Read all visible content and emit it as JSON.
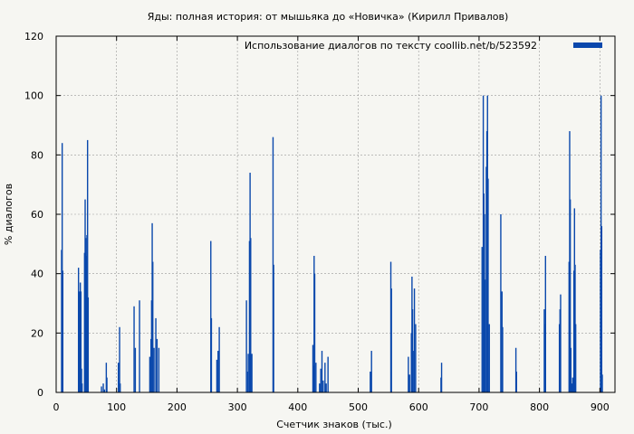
{
  "chart_data": {
    "type": "bar",
    "title": "Яды: полная история: от мышьяка до «Новичка» (Кирилл Привалов)",
    "xlabel": "Счетчик знаков (тыс.)",
    "ylabel": "% диалогов",
    "xlim": [
      0,
      925
    ],
    "ylim": [
      0,
      120
    ],
    "x_ticks": [
      0,
      100,
      200,
      300,
      400,
      500,
      600,
      700,
      800,
      900
    ],
    "y_ticks": [
      0,
      20,
      40,
      60,
      80,
      100,
      120
    ],
    "grid": true,
    "legend_position": "top-right",
    "series": [
      {
        "name": "Использование диалогов по тексту  coollib.net/b/523592",
        "color": "#0a48ac",
        "points": [
          [
            9,
            48
          ],
          [
            10,
            84
          ],
          [
            11,
            41
          ],
          [
            37,
            42
          ],
          [
            38,
            34
          ],
          [
            39,
            19
          ],
          [
            40,
            37
          ],
          [
            41,
            34
          ],
          [
            42,
            8
          ],
          [
            43,
            3
          ],
          [
            47,
            47
          ],
          [
            48,
            65
          ],
          [
            49,
            52
          ],
          [
            50,
            46
          ],
          [
            51,
            53
          ],
          [
            52,
            85
          ],
          [
            53,
            32
          ],
          [
            75,
            2
          ],
          [
            78,
            3
          ],
          [
            80,
            1
          ],
          [
            83,
            10
          ],
          [
            84,
            5
          ],
          [
            103,
            10
          ],
          [
            105,
            22
          ],
          [
            106,
            3
          ],
          [
            129,
            29
          ],
          [
            131,
            15
          ],
          [
            138,
            31
          ],
          [
            155,
            12
          ],
          [
            157,
            18
          ],
          [
            158,
            31
          ],
          [
            159,
            57
          ],
          [
            160,
            44
          ],
          [
            162,
            15
          ],
          [
            165,
            25
          ],
          [
            167,
            18
          ],
          [
            170,
            15
          ],
          [
            256,
            51
          ],
          [
            257,
            25
          ],
          [
            266,
            11
          ],
          [
            268,
            14
          ],
          [
            270,
            22
          ],
          [
            315,
            31
          ],
          [
            317,
            7
          ],
          [
            318,
            13
          ],
          [
            320,
            51
          ],
          [
            321,
            74
          ],
          [
            322,
            52
          ],
          [
            324,
            13
          ],
          [
            359,
            86
          ],
          [
            360,
            43
          ],
          [
            425,
            16
          ],
          [
            426,
            9
          ],
          [
            427,
            46
          ],
          [
            428,
            40
          ],
          [
            430,
            10
          ],
          [
            436,
            3
          ],
          [
            438,
            8
          ],
          [
            440,
            14
          ],
          [
            442,
            4
          ],
          [
            445,
            10
          ],
          [
            447,
            3
          ],
          [
            450,
            12
          ],
          [
            520,
            7
          ],
          [
            522,
            14
          ],
          [
            554,
            44
          ],
          [
            555,
            35
          ],
          [
            583,
            12
          ],
          [
            585,
            6
          ],
          [
            588,
            20
          ],
          [
            589,
            39
          ],
          [
            590,
            28
          ],
          [
            591,
            14
          ],
          [
            593,
            35
          ],
          [
            595,
            23
          ],
          [
            637,
            5
          ],
          [
            638,
            10
          ],
          [
            705,
            49
          ],
          [
            707,
            100
          ],
          [
            708,
            67
          ],
          [
            709,
            60
          ],
          [
            710,
            38
          ],
          [
            712,
            76
          ],
          [
            713,
            88
          ],
          [
            714,
            100
          ],
          [
            715,
            72
          ],
          [
            717,
            23
          ],
          [
            736,
            60
          ],
          [
            738,
            34
          ],
          [
            739,
            22
          ],
          [
            761,
            15
          ],
          [
            762,
            7
          ],
          [
            808,
            28
          ],
          [
            809,
            23
          ],
          [
            810,
            46
          ],
          [
            833,
            23
          ],
          [
            834,
            28
          ],
          [
            835,
            33
          ],
          [
            849,
            44
          ],
          [
            850,
            88
          ],
          [
            851,
            65
          ],
          [
            852,
            15
          ],
          [
            854,
            3
          ],
          [
            855,
            5
          ],
          [
            857,
            41
          ],
          [
            858,
            62
          ],
          [
            859,
            43
          ],
          [
            860,
            23
          ],
          [
            901,
            48
          ],
          [
            902,
            100
          ],
          [
            903,
            56
          ],
          [
            904,
            6
          ]
        ]
      }
    ]
  }
}
